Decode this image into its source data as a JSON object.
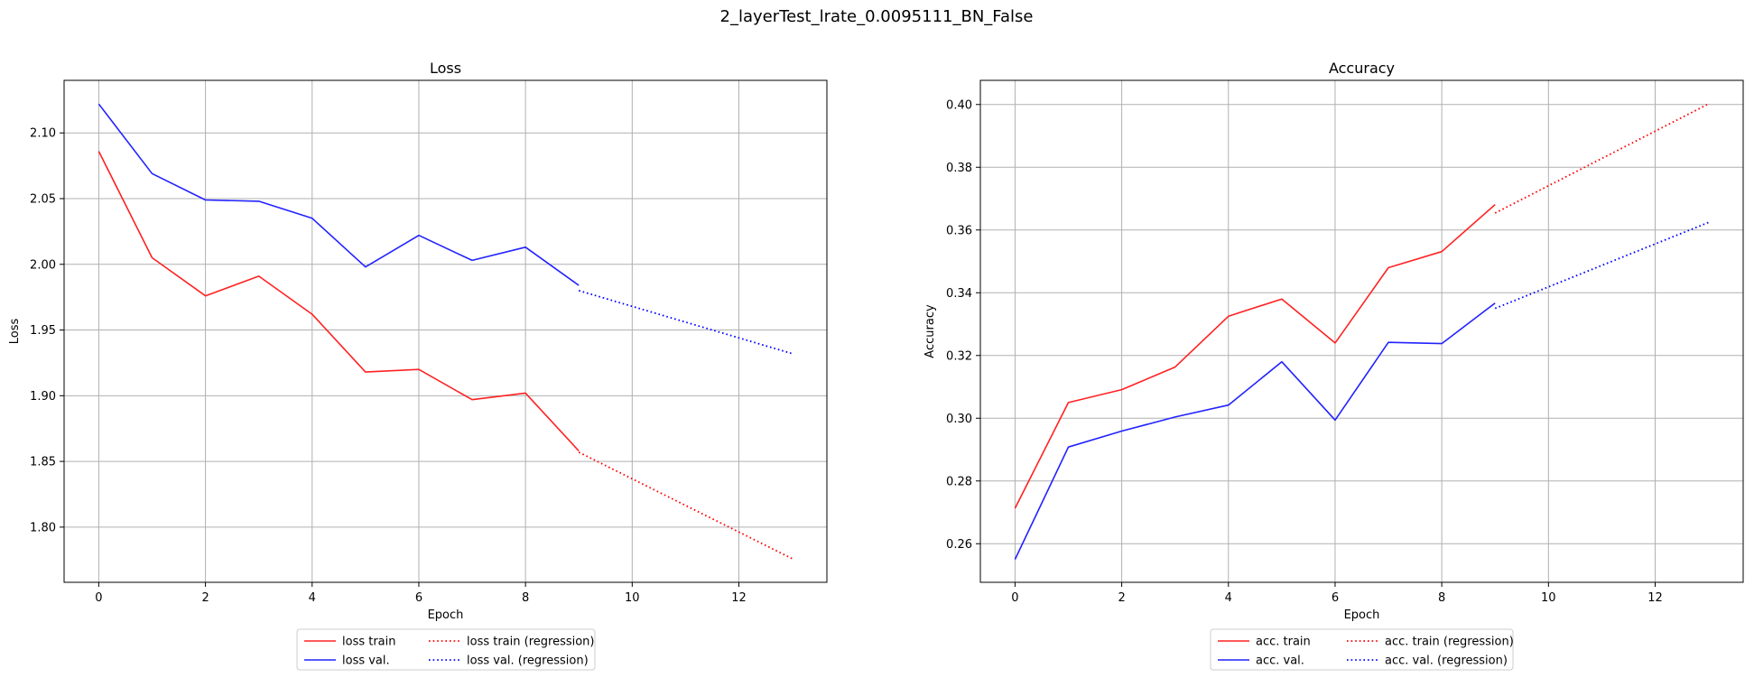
{
  "suptitle": "2_layerTest_lrate_0.0095111_BN_False",
  "chart_data": [
    {
      "type": "line",
      "title": "Loss",
      "xlabel": "Epoch",
      "ylabel": "Loss",
      "xlim": [
        -0.65,
        13.65
      ],
      "ylim": [
        1.758,
        2.14
      ],
      "xticks": [
        0,
        2,
        4,
        6,
        8,
        10,
        12
      ],
      "xtick_labels": [
        "0",
        "2",
        "4",
        "6",
        "8",
        "10",
        "12"
      ],
      "yticks": [
        1.8,
        1.85,
        1.9,
        1.95,
        2.0,
        2.05,
        2.1
      ],
      "ytick_labels": [
        "1.80",
        "1.85",
        "1.90",
        "1.95",
        "2.00",
        "2.05",
        "2.10"
      ],
      "grid": true,
      "legend_position": "below",
      "legend_columns": 2,
      "series": [
        {
          "name": "loss train",
          "color": "#ff2222",
          "style": "solid",
          "x": [
            0,
            1,
            2,
            3,
            4,
            5,
            6,
            7,
            8,
            9
          ],
          "y": [
            2.086,
            2.005,
            1.976,
            1.991,
            1.962,
            1.918,
            1.92,
            1.897,
            1.902,
            1.858
          ]
        },
        {
          "name": "loss val.",
          "color": "#2222ff",
          "style": "solid",
          "x": [
            0,
            1,
            2,
            3,
            4,
            5,
            6,
            7,
            8,
            9
          ],
          "y": [
            2.122,
            2.069,
            2.049,
            2.048,
            2.035,
            1.998,
            2.022,
            2.003,
            2.013,
            1.984
          ]
        },
        {
          "name": "loss train (regression)",
          "color": "#ff0000",
          "style": "dotted",
          "x": [
            9,
            13
          ],
          "y": [
            1.857,
            1.776
          ]
        },
        {
          "name": "loss val. (regression)",
          "color": "#0000ff",
          "style": "dotted",
          "x": [
            9,
            13
          ],
          "y": [
            1.98,
            1.932
          ]
        }
      ]
    },
    {
      "type": "line",
      "title": "Accuracy",
      "xlabel": "Epoch",
      "ylabel": "Accuracy",
      "xlim": [
        -0.65,
        13.65
      ],
      "ylim": [
        0.2477,
        0.4077
      ],
      "xticks": [
        0,
        2,
        4,
        6,
        8,
        10,
        12
      ],
      "xtick_labels": [
        "0",
        "2",
        "4",
        "6",
        "8",
        "10",
        "12"
      ],
      "yticks": [
        0.26,
        0.28,
        0.3,
        0.32,
        0.34,
        0.36,
        0.38,
        0.4
      ],
      "ytick_labels": [
        "0.26",
        "0.28",
        "0.30",
        "0.32",
        "0.34",
        "0.36",
        "0.38",
        "0.40"
      ],
      "grid": true,
      "legend_position": "below",
      "legend_columns": 2,
      "series": [
        {
          "name": "acc. train",
          "color": "#ff2222",
          "style": "solid",
          "x": [
            0,
            1,
            2,
            3,
            4,
            5,
            6,
            7,
            8,
            9
          ],
          "y": [
            0.2713,
            0.305,
            0.3091,
            0.3163,
            0.3325,
            0.338,
            0.324,
            0.348,
            0.3531,
            0.3681
          ]
        },
        {
          "name": "acc. val.",
          "color": "#2222ff",
          "style": "solid",
          "x": [
            0,
            1,
            2,
            3,
            4,
            5,
            6,
            7,
            8,
            9
          ],
          "y": [
            0.255,
            0.2908,
            0.2959,
            0.3004,
            0.3042,
            0.318,
            0.2994,
            0.3242,
            0.3238,
            0.3367
          ]
        },
        {
          "name": "acc. train (regression)",
          "color": "#ff0000",
          "style": "dotted",
          "x": [
            9,
            13
          ],
          "y": [
            0.3654,
            0.4002
          ]
        },
        {
          "name": "acc. val. (regression)",
          "color": "#0000ff",
          "style": "dotted",
          "x": [
            9,
            13
          ],
          "y": [
            0.335,
            0.3624
          ]
        }
      ]
    }
  ]
}
